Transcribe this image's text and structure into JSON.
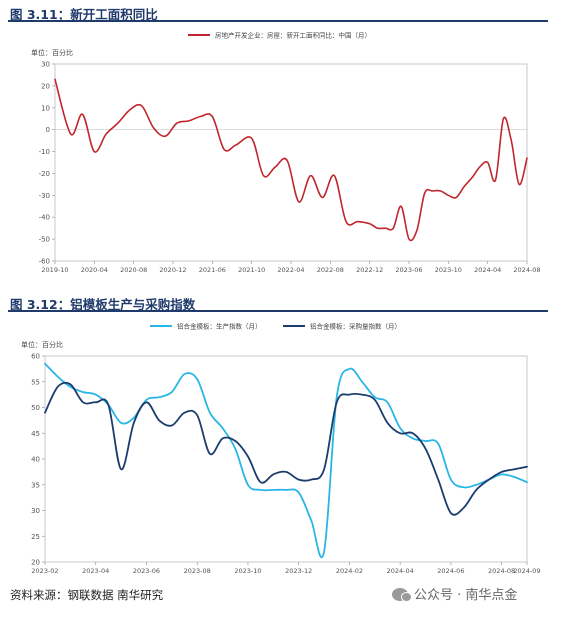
{
  "header1": {
    "title": "图 3.11：新开工面积同比"
  },
  "header2": {
    "title": "图 3.12：铝模板生产与采购指数"
  },
  "footer": {
    "source": "资料来源：钢联数据 南华研究",
    "watermark": "公众号 · 南华点金"
  },
  "colors": {
    "title": "#1f3a6b",
    "series1": "#c0262d",
    "series_light": "#29b6e6",
    "series_dark": "#1c3c6e"
  },
  "chart_data": [
    {
      "type": "line",
      "ylabel": "单位：百分比",
      "ylim": [
        -60,
        30
      ],
      "yticks": [
        30,
        20,
        10,
        0,
        -10,
        -20,
        -30,
        -40,
        -50,
        -60
      ],
      "xticks": [
        "2019-10",
        "2020-04",
        "2020-08",
        "2020-12",
        "2021-06",
        "2021-10",
        "2022-04",
        "2022-08",
        "2022-12",
        "2023-06",
        "2023-10",
        "2024-04",
        "2024-08"
      ],
      "grid": false,
      "legend_position": "top-center",
      "series": [
        {
          "name": "房地产开发企业：房屋：新开工面积同比：中国（月）",
          "x": [
            0,
            0.4,
            0.7,
            1.0,
            1.3,
            1.6,
            1.9,
            2.2,
            2.5,
            2.8,
            3.1,
            3.4,
            3.7,
            4.0,
            4.3,
            4.6,
            5.0,
            5.3,
            5.6,
            5.9,
            6.2,
            6.5,
            6.8,
            7.1,
            7.4,
            7.7,
            8.0,
            8.2,
            8.4,
            8.6,
            8.8,
            9.0,
            9.2,
            9.4,
            9.6,
            9.8,
            10.0,
            10.2,
            10.4,
            10.6,
            10.8,
            11.0,
            11.2,
            11.4,
            11.6,
            11.8,
            12.0
          ],
          "values": [
            23,
            -2,
            7,
            -10,
            -2,
            3,
            9,
            11,
            1,
            -3,
            3,
            4,
            6,
            6,
            -9,
            -7,
            -4,
            -21,
            -17,
            -14,
            -33,
            -21,
            -31,
            -21,
            -42,
            -42,
            -43,
            -45,
            -45,
            -45,
            -35,
            -50,
            -46,
            -29,
            -28,
            -28,
            -30,
            -31,
            -26,
            -22,
            -17,
            -15,
            -23,
            5,
            -5,
            -25,
            -13
          ]
        }
      ]
    },
    {
      "type": "line",
      "ylabel": "单位：百分比",
      "ylim": [
        20,
        60
      ],
      "yticks": [
        60,
        55,
        50,
        45,
        40,
        35,
        30,
        25,
        20
      ],
      "xticks": [
        "2023-02",
        "2023-04",
        "2023-06",
        "2023-08",
        "2023-10",
        "2023-12",
        "2024-02",
        "2024-04",
        "2024-06",
        "2024-08",
        "2024-09"
      ],
      "grid": false,
      "legend_position": "top-center",
      "series": [
        {
          "name": "铝合金模板：生产指数（月）",
          "x": [
            0,
            0.5,
            1.0,
            1.5,
            2.0,
            2.5,
            3.0,
            3.5,
            4.0,
            4.5,
            5.0,
            5.5,
            6.0,
            6.5,
            7.0,
            7.5,
            8.0,
            8.5,
            9.0,
            9.5,
            10.0,
            10.5,
            11.0,
            11.5,
            12.0,
            12.5,
            13.0,
            13.5,
            14.0,
            14.5,
            15.0,
            15.5,
            16.0,
            16.5,
            17.0,
            17.5,
            18.0,
            18.5,
            19.0
          ],
          "values": [
            58.5,
            56,
            54,
            53,
            52.5,
            50.5,
            47,
            48,
            51.5,
            52,
            53,
            56.5,
            55.5,
            49,
            46,
            42,
            35,
            34,
            34,
            34,
            33.5,
            28,
            22,
            52,
            57.5,
            55,
            52,
            51,
            46,
            44,
            43.5,
            43,
            36,
            34.5,
            35,
            36,
            37,
            36.5,
            35.5
          ]
        },
        {
          "name": "铝合金模板：采购量指数（月）",
          "x": [
            0,
            0.5,
            1.0,
            1.5,
            2.0,
            2.5,
            3.0,
            3.5,
            4.0,
            4.5,
            5.0,
            5.5,
            6.0,
            6.5,
            7.0,
            7.5,
            8.0,
            8.5,
            9.0,
            9.5,
            10.0,
            10.5,
            11.0,
            11.5,
            12.0,
            12.5,
            13.0,
            13.5,
            14.0,
            14.5,
            15.0,
            15.5,
            16.0,
            16.5,
            17.0,
            17.5,
            18.0,
            18.5,
            19.0
          ],
          "values": [
            49,
            54,
            54.5,
            51,
            51,
            50.5,
            38,
            47,
            51,
            47.5,
            46.5,
            49,
            48.5,
            41,
            44,
            43.5,
            40.5,
            35.5,
            37,
            37.5,
            36,
            36,
            38,
            51,
            52.5,
            52.5,
            51.5,
            47,
            45,
            45,
            42,
            36,
            29.5,
            30.5,
            34,
            36,
            37.5,
            38,
            38.5
          ]
        }
      ]
    }
  ]
}
